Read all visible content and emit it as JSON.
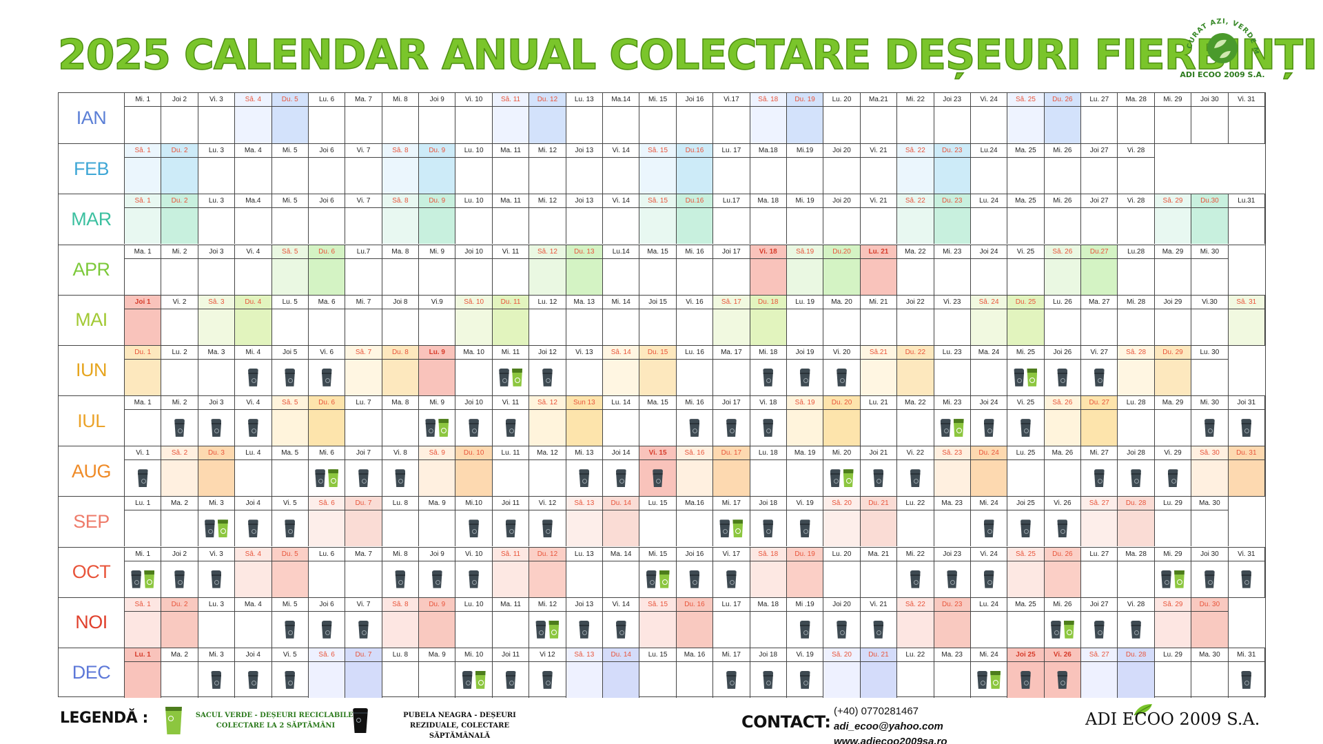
{
  "title": "2025 CALENDAR ANUAL COLECTARE DEȘEURI FIERBINȚI",
  "logo": {
    "arc_text": "CURAT AZI, VERDE MÂINE",
    "name": "ADI ECOO 2009 S.A."
  },
  "colors": {
    "title_green": "#7ac52b",
    "bin_black": "#3e4a52",
    "bin_green": "#8cc63f"
  },
  "months": [
    {
      "label": "IAN",
      "color": "#5b7fd6",
      "sat": "#eef3ff",
      "sun": "#d3e2fb",
      "days": [
        "Mi. 1",
        "Joi 2",
        "Vi. 3",
        "Sâ. 4",
        "Du. 5",
        "Lu. 6",
        "Ma. 7",
        "Mi. 8",
        "Joi 9",
        "Vi. 10",
        "Sâ. 11",
        "Du. 12",
        "Lu. 13",
        "Ma.14",
        "Mi. 15",
        "Joi 16",
        "Vi.17",
        "Sâ. 18",
        "Du. 19",
        "Lu. 20",
        "Ma.21",
        "Mi. 22",
        "Joi 23",
        "Vi. 24",
        "Sâ. 25",
        "Du. 26",
        "Lu. 27",
        "Ma. 28",
        "Mi. 29",
        "Joi 30",
        "Vi. 31"
      ],
      "weekend": [
        3,
        4,
        10,
        11,
        17,
        18,
        24,
        25
      ],
      "holiday": [],
      "bins": {}
    },
    {
      "label": "FEB",
      "color": "#3fa7d6",
      "sat": "#ebf6fd",
      "sun": "#cdebf8",
      "days": [
        "Sâ. 1",
        "Du. 2",
        "Lu. 3",
        "Ma. 4",
        "Mi. 5",
        "Joi 6",
        "Vi. 7",
        "Sâ. 8",
        "Du. 9",
        "Lu. 10",
        "Ma. 11",
        "Mi. 12",
        "Joi 13",
        "Vi. 14",
        "Sâ. 15",
        "Du.16",
        "Lu. 17",
        "Ma.18",
        "Mi.19",
        "Joi 20",
        "Vi. 21",
        "Sâ. 22",
        "Du. 23",
        "Lu.24",
        "Ma. 25",
        "Mi. 26",
        "Joi 27",
        "Vi. 28"
      ],
      "weekend": [
        0,
        1,
        7,
        8,
        14,
        15,
        21,
        22
      ],
      "holiday": [],
      "bins": {}
    },
    {
      "label": "MAR",
      "color": "#3cc0a0",
      "sat": "#e8f8f1",
      "sun": "#c8f0de",
      "days": [
        "Sâ. 1",
        "Du. 2",
        "Lu. 3",
        "Ma.4",
        "Mi. 5",
        "Joi 6",
        "Vi. 7",
        "Sâ. 8",
        "Du. 9",
        "Lu. 10",
        "Ma. 11",
        "Mi. 12",
        "Joi 13",
        "Vi. 14",
        "Sâ. 15",
        "Du.16",
        "Lu.17",
        "Ma. 18",
        "Mi. 19",
        "Joi 20",
        "Vi. 21",
        "Sâ. 22",
        "Du. 23",
        "Lu. 24",
        "Ma. 25",
        "Mi. 26",
        "Joi 27",
        "Vi. 28",
        "Sâ. 29",
        "Du.30",
        "Lu.31"
      ],
      "weekend": [
        0,
        1,
        7,
        8,
        14,
        15,
        21,
        22,
        28,
        29
      ],
      "holiday": [],
      "bins": {}
    },
    {
      "label": "APR",
      "color": "#7cc93a",
      "sat": "#eaf8e2",
      "sun": "#d4f3c4",
      "days": [
        "Ma. 1",
        "Mi. 2",
        "Joi 3",
        "Vi. 4",
        "Sâ. 5",
        "Du. 6",
        "Lu.7",
        "Ma. 8",
        "Mi. 9",
        "Joi 10",
        "Vi. 11",
        "Sâ. 12",
        "Du. 13",
        "Lu.14",
        "Ma. 15",
        "Mi. 16",
        "Joi 17",
        "Vi. 18",
        "Sâ.19",
        "Du.20",
        "Lu. 21",
        "Ma. 22",
        "Mi. 23",
        "Joi 24",
        "Vi. 25",
        "Sâ. 26",
        "Du.27",
        "Lu.28",
        "Ma. 29",
        "Mi. 30"
      ],
      "weekend": [
        4,
        5,
        11,
        12,
        18,
        19,
        25,
        26
      ],
      "holiday": [
        17,
        20
      ],
      "bins": {}
    },
    {
      "label": "MAI",
      "color": "#a2c934",
      "sat": "#f1f9e0",
      "sun": "#e2f4be",
      "days": [
        "Joi 1",
        "Vi. 2",
        "Sâ. 3",
        "Du. 4",
        "Lu. 5",
        "Ma. 6",
        "Mi. 7",
        "Joi 8",
        "Vi.9",
        "Sâ. 10",
        "Du. 11",
        "Lu. 12",
        "Ma. 13",
        "Mi. 14",
        "Joi 15",
        "Vi. 16",
        "Sâ. 17",
        "Du. 18",
        "Lu. 19",
        "Ma. 20",
        "Mi. 21",
        "Joi 22",
        "Vi. 23",
        "Sâ. 24",
        "Du. 25",
        "Lu. 26",
        "Ma. 27",
        "Mi. 28",
        "Joi 29",
        "Vi.30",
        "Sâ. 31"
      ],
      "weekend": [
        2,
        3,
        9,
        10,
        16,
        17,
        23,
        24,
        30
      ],
      "holiday": [
        0
      ],
      "bins": {}
    },
    {
      "label": "IUN",
      "color": "#e6a51f",
      "sat": "#fff6e2",
      "sun": "#fde8be",
      "days": [
        "Du. 1",
        "Lu. 2",
        "Ma. 3",
        "Mi. 4",
        "Joi 5",
        "Vi. 6",
        "Sâ. 7",
        "Du. 8",
        "Lu. 9",
        "Ma. 10",
        "Mi. 11",
        "Joi 12",
        "Vi. 13",
        "Sâ. 14",
        "Du. 15",
        "Lu. 16",
        "Ma. 17",
        "Mi. 18",
        "Joi 19",
        "Vi. 20",
        "Sâ.21",
        "Du. 22",
        "Lu. 23",
        "Ma. 24",
        "Mi. 25",
        "Joi 26",
        "Vi. 27",
        "Sâ. 28",
        "Du. 29",
        "Lu. 30"
      ],
      "weekend": [
        0,
        6,
        7,
        13,
        14,
        20,
        21,
        27,
        28
      ],
      "holiday": [
        8
      ],
      "bins": {
        "3": "B",
        "4": "B",
        "5": "B",
        "10": "BG",
        "11": "B",
        "17": "B",
        "18": "B",
        "19": "B",
        "24": "BG",
        "25": "B",
        "26": "B"
      }
    },
    {
      "label": "IUL",
      "color": "#eba32a",
      "sat": "#fff4dc",
      "sun": "#fde4ac",
      "days": [
        "Ma. 1",
        "Mi. 2",
        "Joi 3",
        "Vi. 4",
        "Sâ. 5",
        "Du. 6",
        "Lu. 7",
        "Ma. 8",
        "Mi. 9",
        "Joi 10",
        "Vi. 11",
        "Sâ. 12",
        "Sun 13",
        "Lu. 14",
        "Ma. 15",
        "Mi. 16",
        "Joi 17",
        "Vi. 18",
        "Sâ. 19",
        "Du. 20",
        "Lu. 21",
        "Ma. 22",
        "Mi. 23",
        "Joi 24",
        "Vi. 25",
        "Sâ. 26",
        "Du. 27",
        "Lu. 28",
        "Ma. 29",
        "Mi. 30",
        "Joi 31"
      ],
      "weekend": [
        4,
        5,
        11,
        12,
        18,
        19,
        25,
        26
      ],
      "holiday": [],
      "bins": {
        "1": "B",
        "2": "B",
        "3": "B",
        "8": "BG",
        "9": "B",
        "10": "B",
        "15": "B",
        "16": "B",
        "17": "B",
        "22": "BG",
        "23": "B",
        "24": "B",
        "29": "B",
        "30": "B"
      }
    },
    {
      "label": "AUG",
      "color": "#ef8a26",
      "sat": "#fff0e0",
      "sun": "#fdd9b0",
      "days": [
        "Vi. 1",
        "Sâ. 2",
        "Du. 3",
        "Lu. 4",
        "Ma. 5",
        "Mi. 6",
        "Joi 7",
        "Vi. 8",
        "Sâ. 9",
        "Du. 10",
        "Lu. 11",
        "Ma. 12",
        "Mi. 13",
        "Joi 14",
        "Vi. 15",
        "Sâ. 16",
        "Du. 17",
        "Lu. 18",
        "Ma. 19",
        "Mi. 20",
        "Joi 21",
        "Vi. 22",
        "Sâ. 23",
        "Du. 24",
        "Lu. 25",
        "Ma. 26",
        "Mi. 27",
        "Joi 28",
        "Vi. 29",
        "Sâ. 30",
        "Du. 31"
      ],
      "weekend": [
        1,
        2,
        8,
        9,
        15,
        16,
        22,
        23,
        29,
        30
      ],
      "holiday": [
        14
      ],
      "bins": {
        "0": "B",
        "5": "BG",
        "6": "B",
        "7": "B",
        "12": "B",
        "13": "B",
        "14": "B",
        "19": "BG",
        "20": "B",
        "21": "B",
        "26": "B",
        "27": "B",
        "28": "B"
      }
    },
    {
      "label": "SEP",
      "color": "#ee7b6a",
      "sat": "#fdeeea",
      "sun": "#fadcd5",
      "days": [
        "Lu. 1",
        "Ma. 2",
        "Mi. 3",
        "Joi 4",
        "Vi. 5",
        "Sâ. 6",
        "Du. 7",
        "Lu. 8",
        "Ma. 9",
        "Mi.10",
        "Joi 11",
        "Vi. 12",
        "Sâ. 13",
        "Du. 14",
        "Lu. 15",
        "Ma.16",
        "Mi. 17",
        "Joi 18",
        "Vi. 19",
        "Sâ. 20",
        "Du. 21",
        "Lu. 22",
        "Ma. 23",
        "Mi. 24",
        "Joi 25",
        "Vi. 26",
        "Sâ. 27",
        "Du. 28",
        "Lu. 29",
        "Ma. 30"
      ],
      "weekend": [
        5,
        6,
        12,
        13,
        19,
        20,
        26,
        27
      ],
      "holiday": [],
      "bins": {
        "2": "BG",
        "3": "B",
        "4": "B",
        "9": "B",
        "10": "B",
        "11": "B",
        "16": "BG",
        "17": "B",
        "18": "B",
        "23": "B",
        "24": "B",
        "25": "B"
      }
    },
    {
      "label": "OCT",
      "color": "#e8543a",
      "sat": "#fde8e3",
      "sun": "#fbcfc6",
      "days": [
        "Mi. 1",
        "Joi 2",
        "Vi. 3",
        "Sâ. 4",
        "Du. 5",
        "Lu. 6",
        "Ma. 7",
        "Mi. 8",
        "Joi 9",
        "Vi. 10",
        "Sâ. 11",
        "Du. 12",
        "Lu. 13",
        "Ma. 14",
        "Mi. 15",
        "Joi 16",
        "Vi. 17",
        "Sâ. 18",
        "Du. 19",
        "Lu. 20",
        "Ma. 21",
        "Mi. 22",
        "Joi 23",
        "Vi. 24",
        "Sâ. 25",
        "Du. 26",
        "Lu. 27",
        "Ma. 28",
        "Mi. 29",
        "Joi 30",
        "Vi. 31"
      ],
      "weekend": [
        3,
        4,
        10,
        11,
        17,
        18,
        24,
        25
      ],
      "holiday": [],
      "bins": {
        "0": "BG",
        "1": "B",
        "2": "B",
        "7": "B",
        "8": "B",
        "9": "B",
        "14": "BG",
        "15": "B",
        "16": "B",
        "21": "B",
        "22": "B",
        "23": "B",
        "28": "BG",
        "29": "B",
        "30": "B"
      }
    },
    {
      "label": "NOI",
      "color": "#e0402c",
      "sat": "#fde6e2",
      "sun": "#f9c9c0",
      "days": [
        "Sâ. 1",
        "Du. 2",
        "Lu. 3",
        "Ma. 4",
        "Mi. 5",
        "Joi 6",
        "Vi. 7",
        "Sâ. 8",
        "Du. 9",
        "Lu. 10",
        "Ma. 11",
        "Mi. 12",
        "Joi 13",
        "Vi. 14",
        "Sâ. 15",
        "Du. 16",
        "Lu. 17",
        "Ma. 18",
        "Mi .19",
        "Joi 20",
        "Vi. 21",
        "Sâ. 22",
        "Du. 23",
        "Lu. 24",
        "Ma. 25",
        "Mi. 26",
        "Joi 27",
        "Vi. 28",
        "Sâ. 29",
        "Du. 30"
      ],
      "weekend": [
        0,
        1,
        7,
        8,
        14,
        15,
        21,
        22,
        28,
        29
      ],
      "holiday": [],
      "bins": {
        "4": "B",
        "5": "B",
        "6": "B",
        "11": "BG",
        "12": "B",
        "13": "B",
        "18": "B",
        "19": "B",
        "20": "B",
        "25": "BG",
        "26": "B",
        "27": "B"
      }
    },
    {
      "label": "DEC",
      "color": "#5d78d8",
      "sat": "#eef1ff",
      "sun": "#d4dcfa",
      "days": [
        "Lu. 1",
        "Ma. 2",
        "Mi. 3",
        "Joi 4",
        "Vi. 5",
        "Sâ. 6",
        "Du. 7",
        "Lu. 8",
        "Ma. 9",
        "Mi. 10",
        "Joi 11",
        "Vi 12",
        "Sâ. 13",
        "Du. 14",
        "Lu. 15",
        "Ma. 16",
        "Mi. 17",
        "Joi 18",
        "Vi. 19",
        "Sâ. 20",
        "Du. 21",
        "Lu. 22",
        "Ma. 23",
        "Mi. 24",
        "Joi 25",
        "Vi. 26",
        "Sâ. 27",
        "Du. 28",
        "Lu. 29",
        "Ma. 30",
        "Mi. 31"
      ],
      "weekend": [
        5,
        6,
        12,
        13,
        19,
        20,
        26,
        27
      ],
      "holiday": [
        0,
        24,
        25
      ],
      "bins": {
        "2": "B",
        "3": "B",
        "4": "B",
        "9": "BG",
        "10": "B",
        "11": "B",
        "16": "B",
        "17": "B",
        "18": "B",
        "23": "BG",
        "24": "B",
        "25": "B",
        "30": "B"
      }
    }
  ],
  "holiday_fill": "#f9c3bb",
  "legend": {
    "label": "LEGENDĂ :",
    "green_text": "SACUL VERDE - DEȘEURI RECICLABILE, COLECTARE LA 2 SĂPTĂMÂNI",
    "black_text": "PUBELA NEAGRA - DEȘEURI REZIDUALE, COLECTARE SĂPTĂMÂNALĂ"
  },
  "contact": {
    "label": "CONTACT:",
    "phone": "(+40) 0770281467",
    "email": "adi_ecoo@yahoo.com",
    "website": "www.adiecoo2009sa.ro"
  },
  "footer_brand": "ADI ECOO 2009 S.A."
}
